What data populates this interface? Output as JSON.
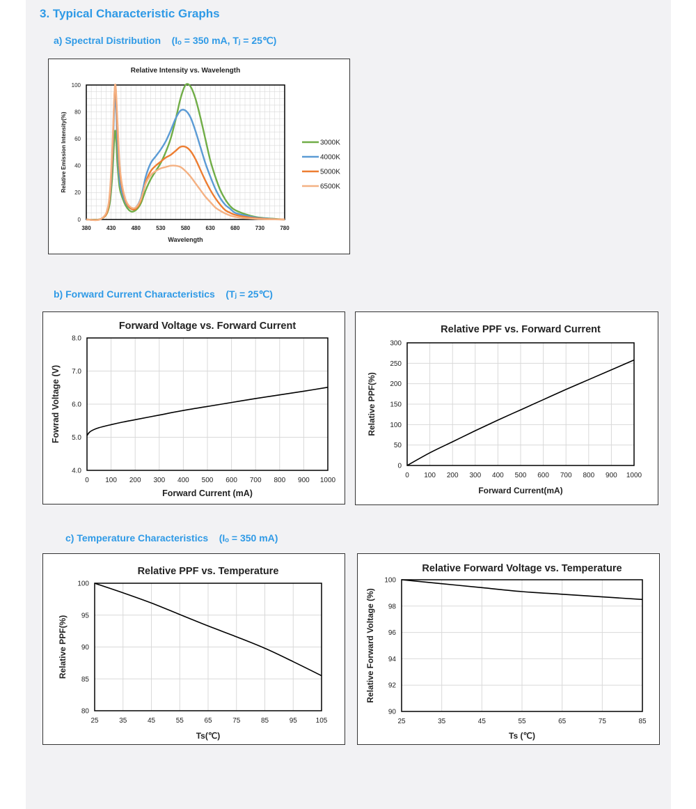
{
  "section_title": "3. Typical Characteristic Graphs",
  "subsections": {
    "a": "a) Spectral Distribution    (Iₒ = 350 mA, Tⱼ = 25℃)",
    "b": "b) Forward Current Characteristics    (Tⱼ = 25℃)",
    "c": "c) Temperature Characteristics    (Iₒ = 350 mA)"
  },
  "chart_data": [
    {
      "id": "spectrum",
      "type": "line",
      "title": "Relative Intensity vs. Wavelength",
      "xlabel": "Wavelength",
      "ylabel": "Relative Emission Intensity(%)",
      "xlim": [
        380,
        780
      ],
      "ylim": [
        0,
        100
      ],
      "xticks": [
        380,
        430,
        480,
        530,
        580,
        630,
        680,
        730,
        780
      ],
      "yticks": [
        0,
        20,
        40,
        60,
        80,
        100
      ],
      "grid": true,
      "legend": "right",
      "series": [
        {
          "name": "3000K",
          "color": "#70ad47",
          "x": [
            380,
            410,
            425,
            432,
            438,
            443,
            447,
            452,
            460,
            470,
            480,
            490,
            500,
            510,
            520,
            530,
            540,
            550,
            560,
            570,
            580,
            590,
            600,
            610,
            620,
            630,
            640,
            650,
            660,
            670,
            680,
            700,
            720,
            740,
            760,
            780
          ],
          "y": [
            0,
            0.5,
            8,
            30,
            66,
            40,
            24,
            17,
            10,
            6,
            7,
            12,
            22,
            30,
            36,
            42,
            50,
            60,
            74,
            90,
            100,
            99,
            90,
            76,
            60,
            44,
            32,
            22,
            15,
            10,
            7,
            4,
            2,
            1,
            0.5,
            0
          ]
        },
        {
          "name": "4000K",
          "color": "#5b9bd5",
          "x": [
            380,
            410,
            425,
            432,
            438,
            443,
            447,
            452,
            460,
            470,
            480,
            490,
            500,
            510,
            520,
            530,
            540,
            550,
            560,
            570,
            580,
            590,
            600,
            610,
            620,
            630,
            640,
            650,
            660,
            670,
            680,
            700,
            720,
            740,
            760,
            780
          ],
          "y": [
            0,
            0.5,
            10,
            40,
            92,
            55,
            30,
            20,
            12,
            8,
            9,
            16,
            32,
            42,
            47,
            52,
            58,
            66,
            75,
            81,
            81,
            76,
            66,
            54,
            42,
            32,
            23,
            16,
            11,
            8,
            5,
            3,
            1.5,
            0.8,
            0.3,
            0
          ]
        },
        {
          "name": "5000K",
          "color": "#ed7d31",
          "x": [
            380,
            410,
            425,
            432,
            438,
            443,
            447,
            452,
            460,
            470,
            480,
            490,
            500,
            510,
            520,
            530,
            540,
            550,
            560,
            570,
            580,
            590,
            600,
            610,
            620,
            630,
            640,
            650,
            660,
            670,
            680,
            700,
            720,
            740,
            760,
            780
          ],
          "y": [
            0,
            0.5,
            10,
            45,
            100,
            65,
            38,
            24,
            13,
            8,
            8,
            14,
            28,
            36,
            40,
            43,
            46,
            48,
            51,
            54,
            54,
            51,
            45,
            37,
            29,
            22,
            16,
            11,
            7,
            5,
            3.5,
            2,
            1,
            0.5,
            0.2,
            0
          ]
        },
        {
          "name": "6500K",
          "color": "#f4b183",
          "x": [
            380,
            410,
            425,
            432,
            438,
            443,
            447,
            452,
            460,
            470,
            480,
            490,
            500,
            510,
            520,
            530,
            540,
            550,
            560,
            570,
            580,
            590,
            600,
            610,
            620,
            630,
            640,
            650,
            660,
            670,
            680,
            700,
            720,
            740,
            760,
            780
          ],
          "y": [
            0,
            0.5,
            12,
            50,
            100,
            72,
            42,
            26,
            14,
            9,
            9,
            15,
            27,
            33,
            36,
            38,
            39,
            40,
            40,
            39,
            36,
            32,
            27,
            22,
            17,
            13,
            9,
            6.5,
            4.5,
            3,
            2,
            1,
            0.5,
            0.2,
            0.1,
            0
          ]
        }
      ]
    },
    {
      "id": "vf_if",
      "type": "line",
      "title": "Forward Voltage vs. Forward Current",
      "xlabel": "Forward Current (mA)",
      "ylabel": "Fowrad Voltage (V)",
      "xlim": [
        0,
        1000
      ],
      "ylim": [
        4.0,
        8.0
      ],
      "xticks": [
        0,
        100,
        200,
        300,
        400,
        500,
        600,
        700,
        800,
        900,
        1000
      ],
      "yticks": [
        4.0,
        5.0,
        6.0,
        7.0,
        8.0
      ],
      "ytick_labels": [
        "4.0",
        "5.0",
        "6.0",
        "7.0",
        "8.0"
      ],
      "grid": true,
      "series": [
        {
          "name": "",
          "color": "#000000",
          "x": [
            0,
            10,
            25,
            50,
            100,
            150,
            200,
            300,
            400,
            500,
            600,
            700,
            800,
            900,
            1000
          ],
          "y": [
            5.05,
            5.15,
            5.22,
            5.29,
            5.38,
            5.46,
            5.53,
            5.67,
            5.81,
            5.93,
            6.05,
            6.17,
            6.28,
            6.39,
            6.51
          ]
        }
      ]
    },
    {
      "id": "ppf_if",
      "type": "line",
      "title": "Relative PPF vs. Forward Current",
      "xlabel": "Forward Current(mA)",
      "ylabel": "Relative PPF(%)",
      "xlim": [
        0,
        1000
      ],
      "ylim": [
        0,
        300
      ],
      "xticks": [
        0,
        100,
        200,
        300,
        400,
        500,
        600,
        700,
        800,
        900,
        1000
      ],
      "yticks": [
        0,
        50,
        100,
        150,
        200,
        250,
        300
      ],
      "grid": true,
      "series": [
        {
          "name": "",
          "color": "#000000",
          "x": [
            0,
            100,
            200,
            300,
            400,
            500,
            600,
            700,
            800,
            900,
            1000
          ],
          "y": [
            0,
            31,
            58,
            85,
            111,
            136,
            161,
            186,
            210,
            234,
            258
          ]
        }
      ]
    },
    {
      "id": "ppf_t",
      "type": "line",
      "title": "Relative PPF vs. Temperature",
      "xlabel": "Ts(℃)",
      "ylabel": "Relative PPF(%)",
      "xlim": [
        25,
        105
      ],
      "ylim": [
        80,
        100
      ],
      "xticks": [
        25,
        35,
        45,
        55,
        65,
        75,
        85,
        95,
        105
      ],
      "yticks": [
        80,
        85,
        90,
        95,
        100
      ],
      "grid": true,
      "series": [
        {
          "name": "",
          "color": "#000000",
          "x": [
            25,
            35,
            45,
            55,
            65,
            75,
            85,
            95,
            105
          ],
          "y": [
            100,
            98.5,
            96.9,
            95.1,
            93.3,
            91.6,
            89.8,
            87.7,
            85.5
          ]
        }
      ]
    },
    {
      "id": "vf_t",
      "type": "line",
      "title": "Relative Forward Voltage vs. Temperature",
      "xlabel": "Ts (℃)",
      "ylabel": "Relative Forward Voltage (%)",
      "xlim": [
        25,
        85
      ],
      "ylim": [
        90,
        100
      ],
      "xticks": [
        25,
        35,
        45,
        55,
        65,
        75,
        85
      ],
      "yticks": [
        90,
        92,
        94,
        96,
        98,
        100
      ],
      "grid": true,
      "series": [
        {
          "name": "",
          "color": "#000000",
          "x": [
            25,
            35,
            45,
            55,
            65,
            75,
            85
          ],
          "y": [
            100,
            99.7,
            99.4,
            99.1,
            98.9,
            98.7,
            98.5
          ]
        }
      ]
    }
  ]
}
